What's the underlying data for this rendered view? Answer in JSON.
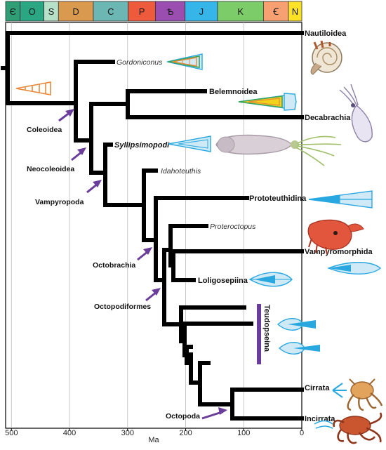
{
  "periods": [
    {
      "label": "Є",
      "color": "#2f9e77",
      "start": 510,
      "end": 485
    },
    {
      "label": "O",
      "color": "#2aa683",
      "start": 485,
      "end": 444
    },
    {
      "label": "S",
      "color": "#b7e0c8",
      "start": 444,
      "end": 419
    },
    {
      "label": "D",
      "color": "#d99a4f",
      "start": 419,
      "end": 359
    },
    {
      "label": "C",
      "color": "#6cb6b3",
      "start": 359,
      "end": 299
    },
    {
      "label": "P",
      "color": "#ee5a3c",
      "start": 299,
      "end": 252
    },
    {
      "label": "Ѣ",
      "color": "#9a4fb0",
      "start": 252,
      "end": 201
    },
    {
      "label": "J",
      "color": "#36b5e8",
      "start": 201,
      "end": 145
    },
    {
      "label": "K",
      "color": "#7ccd6a",
      "start": 145,
      "end": 66
    },
    {
      "label": "Ꞓ",
      "color": "#f7a071",
      "start": 66,
      "end": 23
    },
    {
      "label": "N",
      "color": "#fbe227",
      "start": 23,
      "end": 0
    }
  ],
  "axis": {
    "title": "Ma",
    "ticks": [
      500,
      400,
      300,
      200,
      100,
      0
    ],
    "ages": [
      510,
      0
    ]
  },
  "tips": {
    "nautiloidea": "Nautiloidea",
    "gordoniconus": "Gordoniconus",
    "belemnoidea": "Belemnoidea",
    "decabrachia": "Decabrachia",
    "syllipsimopodi": "Syllipsimopodi",
    "idahoteuthis": "Idahoteuthis",
    "prototeuthidina": "Prototeuthidina",
    "proteroctopus": "Proteroctopus",
    "vampyromorphida": "Vampyromorphida",
    "loligosepiina": "Loligosepiina",
    "teudopseina": "Teudopseina",
    "cirrata": "Cirrata",
    "incirrata": "Incirrata"
  },
  "nodes": {
    "coleoidea": "Coleoidea",
    "neocoleoidea": "Neocoleoidea",
    "vampyropoda": "Vampyropoda",
    "octobrachia": "Octobrachia",
    "octopodiformes": "Octopodiformes",
    "octopoda": "Octopoda"
  },
  "colors": {
    "arrow": "#6a3d9a",
    "bracket": "#6a3d9a",
    "gladius_fill": "#cfe9f6",
    "gladius_stroke": "#29a8e0",
    "cone_orange": "#e8893a",
    "cone_green": "#3aa55a",
    "cone_yellow": "#f3d21a",
    "branch": "#000000",
    "grid": "#bbbbbb"
  },
  "icons": [
    "nautilus-icon",
    "squid-icon",
    "syllipsimopodi-icon",
    "vampyroteuthis-icon",
    "cirrate-octopus-icon",
    "incirrate-octopus-icon"
  ]
}
